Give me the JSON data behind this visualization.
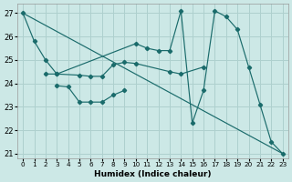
{
  "xlabel": "Humidex (Indice chaleur)",
  "bg_color": "#cce8e6",
  "grid_color": "#aed0ce",
  "line_color": "#1a6b6b",
  "xlim": [
    -0.5,
    23.5
  ],
  "ylim": [
    20.8,
    27.4
  ],
  "yticks": [
    21,
    22,
    23,
    24,
    25,
    26,
    27
  ],
  "xticks": [
    0,
    1,
    2,
    3,
    4,
    5,
    6,
    7,
    8,
    9,
    10,
    11,
    12,
    13,
    14,
    15,
    16,
    17,
    18,
    19,
    20,
    21,
    22,
    23
  ],
  "series": [
    {
      "x": [
        0,
        1,
        2,
        3,
        10,
        11,
        12,
        13,
        14,
        15,
        16,
        17,
        18,
        19,
        20,
        21,
        22,
        23
      ],
      "y": [
        27.0,
        25.8,
        25.0,
        24.4,
        25.7,
        25.5,
        25.4,
        25.4,
        27.1,
        22.3,
        23.7,
        27.1,
        26.85,
        26.3,
        24.7,
        23.1,
        21.5,
        21.0
      ]
    },
    {
      "x": [
        2,
        3,
        5,
        6,
        7,
        8,
        9,
        10,
        13,
        14,
        16
      ],
      "y": [
        24.4,
        24.4,
        24.35,
        24.3,
        24.3,
        24.8,
        24.9,
        24.85,
        24.5,
        24.4,
        24.7
      ]
    },
    {
      "x": [
        3,
        4,
        5,
        6,
        7,
        8,
        9
      ],
      "y": [
        23.9,
        23.85,
        23.2,
        23.2,
        23.2,
        23.5,
        23.7
      ]
    },
    {
      "x": [
        0,
        23
      ],
      "y": [
        27.0,
        21.0
      ],
      "no_marker": true
    }
  ]
}
